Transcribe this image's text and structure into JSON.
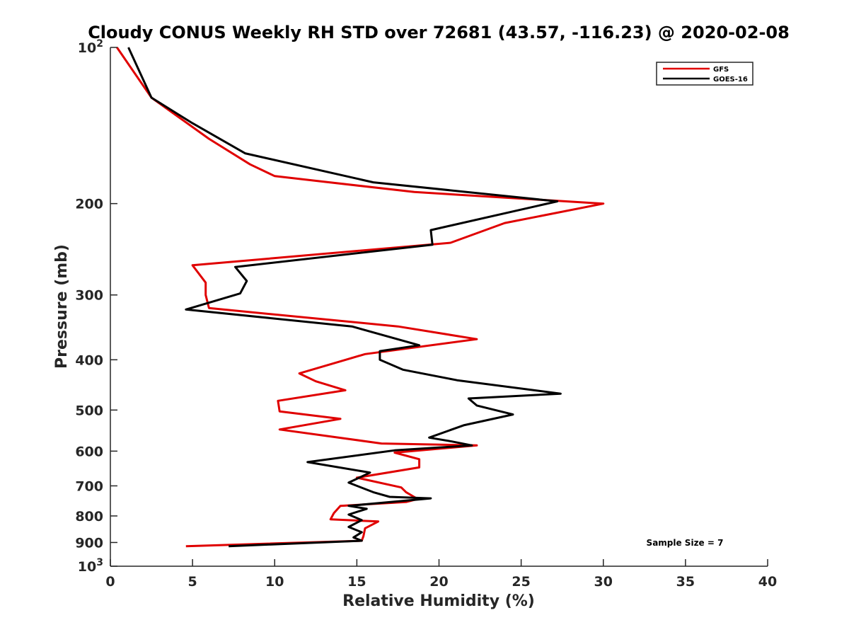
{
  "chart_data": {
    "type": "line",
    "title": "Cloudy CONUS Weekly RH STD over 72681 (43.57, -116.23) @ 2020-02-08",
    "xlabel": "Relative Humidity (%)",
    "ylabel": "Pressure (mb)",
    "xlim": [
      0,
      40
    ],
    "ylim": [
      100,
      1000
    ],
    "y_scale": "log",
    "y_reversed": true,
    "grid": false,
    "legend_position": "top-right",
    "x_ticks": [
      "0",
      "5",
      "10",
      "15",
      "20",
      "25",
      "30",
      "35",
      "40"
    ],
    "y_ticks": [
      {
        "value": 100,
        "base": "10",
        "exp": "2"
      },
      {
        "value": 200,
        "label": "200"
      },
      {
        "value": 300,
        "label": "300"
      },
      {
        "value": 400,
        "label": "400"
      },
      {
        "value": 500,
        "label": "500"
      },
      {
        "value": 600,
        "label": "600"
      },
      {
        "value": 700,
        "label": "700"
      },
      {
        "value": 800,
        "label": "800"
      },
      {
        "value": 900,
        "label": "900"
      },
      {
        "value": 1000,
        "base": "10",
        "exp": "3"
      }
    ],
    "annotation": "Sample Size = 7",
    "series": [
      {
        "name": "GFS",
        "color": "#e00000",
        "points": [
          [
            0.4,
            100
          ],
          [
            2.5,
            125
          ],
          [
            6.0,
            150
          ],
          [
            8.5,
            168
          ],
          [
            10.0,
            177
          ],
          [
            18.5,
            190
          ],
          [
            30.0,
            200
          ],
          [
            24.0,
            218
          ],
          [
            20.7,
            238
          ],
          [
            5.0,
            263
          ],
          [
            5.8,
            284
          ],
          [
            5.8,
            300
          ],
          [
            6.0,
            318
          ],
          [
            17.5,
            345
          ],
          [
            22.3,
            365
          ],
          [
            15.5,
            390
          ],
          [
            11.5,
            425
          ],
          [
            12.5,
            440
          ],
          [
            14.3,
            458
          ],
          [
            10.2,
            480
          ],
          [
            10.3,
            503
          ],
          [
            14.0,
            520
          ],
          [
            10.3,
            545
          ],
          [
            16.5,
            580
          ],
          [
            22.3,
            585
          ],
          [
            17.3,
            604
          ],
          [
            18.8,
            622
          ],
          [
            18.8,
            645
          ],
          [
            15.0,
            675
          ],
          [
            17.7,
            705
          ],
          [
            18.0,
            720
          ],
          [
            18.7,
            742
          ],
          [
            18.0,
            752
          ],
          [
            14.0,
            765
          ],
          [
            13.6,
            790
          ],
          [
            13.4,
            812
          ],
          [
            16.3,
            820
          ],
          [
            15.5,
            845
          ],
          [
            15.4,
            875
          ],
          [
            15.3,
            893
          ],
          [
            4.6,
            915
          ]
        ]
      },
      {
        "name": "GOES-16",
        "color": "#000000",
        "points": [
          [
            1.1,
            100
          ],
          [
            2.5,
            125
          ],
          [
            5.0,
            140
          ],
          [
            8.2,
            160
          ],
          [
            16.0,
            182
          ],
          [
            27.2,
            198
          ],
          [
            19.5,
            225
          ],
          [
            19.6,
            240
          ],
          [
            7.6,
            265
          ],
          [
            8.3,
            282
          ],
          [
            7.9,
            298
          ],
          [
            4.6,
            320
          ],
          [
            14.7,
            345
          ],
          [
            18.8,
            375
          ],
          [
            16.4,
            385
          ],
          [
            16.4,
            400
          ],
          [
            17.8,
            418
          ],
          [
            21.1,
            438
          ],
          [
            27.4,
            465
          ],
          [
            21.8,
            475
          ],
          [
            22.3,
            490
          ],
          [
            24.5,
            510
          ],
          [
            21.5,
            535
          ],
          [
            19.4,
            565
          ],
          [
            20.8,
            575
          ],
          [
            22.0,
            585
          ],
          [
            17.3,
            598
          ],
          [
            12.0,
            630
          ],
          [
            15.8,
            660
          ],
          [
            14.5,
            690
          ],
          [
            16.0,
            720
          ],
          [
            17.0,
            735
          ],
          [
            19.5,
            740
          ],
          [
            14.5,
            765
          ],
          [
            15.6,
            775
          ],
          [
            14.5,
            795
          ],
          [
            15.3,
            815
          ],
          [
            14.5,
            840
          ],
          [
            15.3,
            860
          ],
          [
            14.8,
            880
          ],
          [
            15.3,
            893
          ],
          [
            7.2,
            915
          ]
        ]
      }
    ]
  }
}
